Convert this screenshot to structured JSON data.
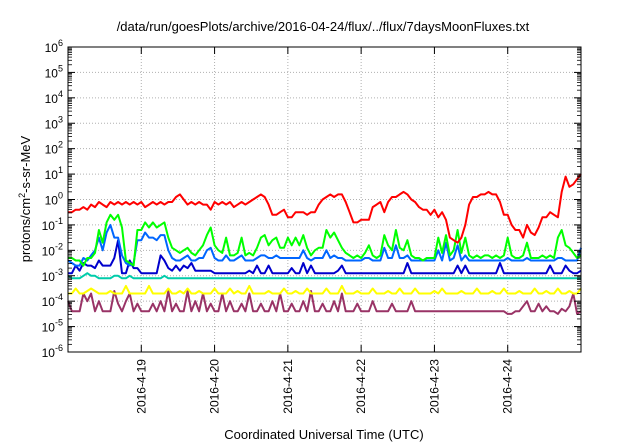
{
  "chart_data": {
    "type": "line",
    "title": "/data/run/goesPlots/archive/2016-04-24/flux/../flux/7daysMoonFluxes.txt",
    "xlabel": "Coordinated Universal Time (UTC)",
    "ylabel": {
      "pre": "protons/cm",
      "sup": "2",
      "post": "-s-sr-MeV"
    },
    "y_log_scale": true,
    "ylim_exponent": [
      -6,
      6
    ],
    "ytick_base": "10",
    "ytick_exponents": [
      "-6",
      "-5",
      "-4",
      "-3",
      "-2",
      "-1",
      "0",
      "1",
      "2",
      "3",
      "4",
      "5",
      "6"
    ],
    "xlim_days": [
      0,
      7
    ],
    "x_tick_labels": [
      "2016-4-19",
      "2016-4-20",
      "2016-4-21",
      "2016-4-22",
      "2016-4-23",
      "2016-4-24"
    ],
    "x_tick_days": [
      1,
      2,
      3,
      4,
      5,
      6
    ],
    "grid": true,
    "series": [
      {
        "color": "#ff0000",
        "key": "p1",
        "values": [
          -0.5,
          -0.5,
          -0.4,
          -0.4,
          -0.3,
          -0.4,
          -0.2,
          -0.3,
          -0.1,
          -0.2,
          -0.3,
          -0.1,
          -0.2,
          -0.1,
          -0.2,
          -0.1,
          -0.2,
          -0.1,
          -0.2,
          -0.1,
          -0.3,
          -0.2,
          -0.1,
          -0.2,
          -0.1,
          -0.2,
          -0.1,
          -0.1,
          0.1,
          0.2,
          0.0,
          -0.2,
          -0.1,
          -0.2,
          -0.1,
          -0.2,
          -0.2,
          -0.4,
          -0.1,
          -0.2,
          -0.1,
          -0.2,
          -0.1,
          -0.3,
          -0.2,
          -0.1,
          -0.2,
          -0.1,
          0.0,
          0.1,
          0.2,
          0.1,
          -0.2,
          -0.6,
          -0.6,
          -0.5,
          -0.4,
          -0.7,
          -0.7,
          -0.5,
          -0.5,
          -0.5,
          -0.6,
          -0.5,
          -0.5,
          -0.2,
          0.0,
          0.1,
          0.2,
          0.1,
          0.2,
          0.2,
          -0.1,
          -0.5,
          -0.9,
          -0.9,
          -0.8,
          -0.8,
          -0.8,
          -0.3,
          -0.2,
          -0.1,
          -0.5,
          -0.1,
          0.1,
          0.1,
          0.2,
          0.3,
          0.2,
          0.0,
          -0.1,
          -0.3,
          -0.4,
          -0.4,
          -0.6,
          -0.4,
          -0.7,
          -0.5,
          -0.8,
          -1.5,
          -1.6,
          -1.7,
          -1.5,
          -1.0,
          -0.2,
          0.1,
          0.1,
          0.2,
          0.2,
          0.3,
          0.2,
          0.2,
          -0.1,
          -0.6,
          -0.6,
          -1.0,
          -1.2,
          -1.2,
          -1.5,
          -1.0,
          -1.3,
          -1.4,
          -1.1,
          -0.7,
          -0.7,
          -0.5,
          -0.6,
          -0.7,
          0.3,
          0.9,
          0.5,
          0.6,
          0.8,
          1.0
        ]
      },
      {
        "color": "#00ff00",
        "key": "p2",
        "values": [
          -2.3,
          -2.3,
          -2.4,
          -2.4,
          -2.6,
          -2.3,
          -2.3,
          -2.1,
          -1.2,
          -1.7,
          -0.9,
          -0.6,
          -0.8,
          -0.6,
          -1.1,
          -2.4,
          -2.5,
          -2.6,
          -1.2,
          -1.2,
          -0.9,
          -1.1,
          -0.9,
          -1.1,
          -1.0,
          -0.9,
          -1.5,
          -1.9,
          -2.0,
          -2.1,
          -2.0,
          -1.9,
          -2.1,
          -2.2,
          -2.0,
          -1.8,
          -1.4,
          -1.1,
          -1.8,
          -2.0,
          -2.1,
          -1.5,
          -2.2,
          -2.2,
          -2.1,
          -1.5,
          -2.2,
          -2.1,
          -2.2,
          -1.9,
          -1.5,
          -1.4,
          -1.8,
          -1.6,
          -1.5,
          -1.9,
          -1.9,
          -1.5,
          -1.8,
          -1.5,
          -1.8,
          -1.4,
          -1.9,
          -2.2,
          -2.0,
          -1.9,
          -1.9,
          -1.2,
          -1.5,
          -1.3,
          -1.6,
          -1.9,
          -2.1,
          -2.2,
          -2.3,
          -2.2,
          -2.3,
          -2.1,
          -1.8,
          -2.2,
          -2.3,
          -2.2,
          -1.4,
          -1.8,
          -2.0,
          -1.2,
          -1.9,
          -2.0,
          -1.6,
          -2.2,
          -2.3,
          -2.3,
          -2.4,
          -2.3,
          -2.3,
          -2.3,
          -1.5,
          -2.1,
          -1.4,
          -2.2,
          -2.0,
          -1.2,
          -2.1,
          -1.5,
          -2.2,
          -2.3,
          -2.2,
          -2.3,
          -2.2,
          -2.2,
          -2.3,
          -2.2,
          -2.3,
          -2.2,
          -1.5,
          -2.2,
          -2.3,
          -2.3,
          -2.2,
          -1.7,
          -2.3,
          -2.3,
          -2.3,
          -2.2,
          -2.3,
          -2.2,
          -2.3,
          -1.5,
          -1.2,
          -1.8,
          -1.9,
          -2.1,
          -2.3,
          -2.2
        ]
      },
      {
        "color": "#0066ff",
        "key": "p3",
        "values": [
          -2.4,
          -2.5,
          -2.6,
          -2.6,
          -2.3,
          -2.4,
          -2.2,
          -2.0,
          -1.5,
          -2.0,
          -1.3,
          -1.0,
          -1.5,
          -1.5,
          -2.2,
          -2.5,
          -2.6,
          -2.5,
          -1.6,
          -1.6,
          -1.3,
          -1.5,
          -1.5,
          -1.6,
          -1.4,
          -1.4,
          -2.0,
          -2.3,
          -2.4,
          -2.4,
          -2.3,
          -2.2,
          -2.4,
          -2.4,
          -2.3,
          -2.3,
          -2.0,
          -1.9,
          -2.3,
          -2.4,
          -2.4,
          -2.2,
          -2.4,
          -2.4,
          -2.3,
          -2.2,
          -2.4,
          -2.4,
          -2.4,
          -2.3,
          -2.2,
          -2.2,
          -2.3,
          -2.3,
          -2.2,
          -2.3,
          -2.3,
          -2.3,
          -2.3,
          -2.3,
          -2.3,
          -2.0,
          -2.3,
          -2.4,
          -2.3,
          -2.3,
          -2.3,
          -2.0,
          -2.3,
          -2.2,
          -2.3,
          -2.3,
          -2.4,
          -2.4,
          -2.4,
          -2.4,
          -2.4,
          -2.3,
          -2.3,
          -2.4,
          -2.4,
          -2.4,
          -1.9,
          -2.3,
          -2.3,
          -1.8,
          -2.3,
          -2.3,
          -2.2,
          -2.4,
          -2.4,
          -2.4,
          -2.4,
          -2.4,
          -2.4,
          -2.4,
          -2.0,
          -2.4,
          -1.7,
          -2.4,
          -2.3,
          -1.8,
          -2.4,
          -2.2,
          -2.4,
          -2.4,
          -2.4,
          -2.4,
          -2.4,
          -2.4,
          -2.4,
          -2.4,
          -2.4,
          -2.4,
          -2.3,
          -2.4,
          -2.4,
          -2.4,
          -2.4,
          -2.3,
          -2.4,
          -2.4,
          -2.4,
          -2.4,
          -2.4,
          -2.4,
          -2.4,
          -2.3,
          -2.3,
          -2.4,
          -2.4,
          -2.4,
          -2.4,
          -1.9
        ]
      },
      {
        "color": "#0000cc",
        "key": "p4",
        "values": [
          -2.9,
          -2.9,
          -2.6,
          -2.8,
          -2.5,
          -2.6,
          -2.6,
          -2.7,
          -2.4,
          -2.6,
          -2.6,
          -2.6,
          -2.3,
          -1.6,
          -2.9,
          -2.9,
          -2.4,
          -2.7,
          -2.7,
          -2.9,
          -2.9,
          -2.9,
          -2.9,
          -2.9,
          -2.2,
          -2.4,
          -2.7,
          -2.8,
          -2.6,
          -2.8,
          -2.6,
          -2.7,
          -2.5,
          -2.8,
          -2.8,
          -2.8,
          -2.8,
          -2.8,
          -2.9,
          -2.9,
          -2.9,
          -2.9,
          -2.9,
          -2.9,
          -2.9,
          -2.9,
          -2.9,
          -2.8,
          -2.9,
          -2.6,
          -2.9,
          -2.9,
          -2.6,
          -2.9,
          -2.9,
          -2.9,
          -2.9,
          -2.9,
          -2.7,
          -2.9,
          -2.9,
          -2.5,
          -2.9,
          -2.6,
          -2.9,
          -2.9,
          -2.9,
          -2.9,
          -2.9,
          -2.9,
          -2.8,
          -2.6,
          -2.9,
          -2.9,
          -2.9,
          -2.9,
          -2.9,
          -2.9,
          -2.9,
          -2.9,
          -2.9,
          -2.9,
          -2.9,
          -2.9,
          -2.9,
          -2.9,
          -2.9,
          -2.9,
          -2.5,
          -2.9,
          -2.9,
          -2.9,
          -2.9,
          -2.9,
          -2.9,
          -2.9,
          -2.9,
          -2.9,
          -2.9,
          -2.9,
          -2.9,
          -2.6,
          -2.9,
          -2.6,
          -2.9,
          -2.9,
          -2.9,
          -2.9,
          -2.9,
          -2.9,
          -2.9,
          -2.9,
          -2.5,
          -2.9,
          -2.9,
          -2.9,
          -2.9,
          -2.9,
          -2.9,
          -2.9,
          -2.9,
          -2.9,
          -2.9,
          -2.9,
          -2.9,
          -2.6,
          -2.9,
          -2.9,
          -2.9,
          -2.6,
          -2.8,
          -2.9,
          -2.9,
          -2.8
        ]
      },
      {
        "color": "#00ccaa",
        "key": "p5",
        "values": [
          -3.0,
          -3.1,
          -3.1,
          -3.1,
          -3.0,
          -2.9,
          -3.0,
          -3.0,
          -3.1,
          -3.1,
          -3.1,
          -3.1,
          -3.0,
          -3.0,
          -3.1,
          -3.1,
          -3.0,
          -3.1,
          -3.1,
          -3.1,
          -3.1,
          -3.1,
          -3.1,
          -3.1,
          -3.1,
          -3.0,
          -3.1,
          -3.1,
          -3.1,
          -3.1,
          -3.1,
          -3.1,
          -3.1,
          -3.1,
          -3.1,
          -3.1,
          -3.1,
          -3.1,
          -3.1,
          -3.1,
          -3.1,
          -3.1,
          -3.1,
          -3.1,
          -3.1,
          -3.1,
          -3.1,
          -3.1,
          -3.1,
          -3.1,
          -3.1,
          -3.1,
          -3.1,
          -3.1,
          -3.1,
          -3.1,
          -3.1,
          -3.1,
          -3.1,
          -3.1,
          -3.1,
          -3.1,
          -3.1,
          -3.1,
          -3.1,
          -3.1,
          -3.1,
          -3.1,
          -3.1,
          -3.1,
          -3.1,
          -3.1,
          -3.1,
          -3.1,
          -3.1,
          -3.1,
          -3.1,
          -3.1,
          -3.1,
          -3.1,
          -3.1,
          -3.1,
          -3.1,
          -3.1,
          -3.1,
          -3.1,
          -3.1,
          -3.1,
          -3.1,
          -3.1,
          -3.1,
          -3.1,
          -3.1,
          -3.1,
          -3.1,
          -3.1,
          -3.1,
          -3.1,
          -3.1,
          -3.1,
          -3.1,
          -3.1,
          -3.1,
          -3.1,
          -3.1,
          -3.1,
          -3.1,
          -3.1,
          -3.1,
          -3.1,
          -3.1,
          -3.1,
          -3.1,
          -3.1,
          -3.1,
          -3.1,
          -3.1,
          -3.1,
          -3.1,
          -3.1,
          -3.1,
          -3.1,
          -3.1,
          -3.1,
          -3.1,
          -3.1,
          -3.1,
          -3.1,
          -3.1,
          -3.1,
          -3.1,
          -3.1,
          -3.1,
          -3.1
        ]
      },
      {
        "color": "#ffff00",
        "key": "p6",
        "values": [
          -3.7,
          -3.7,
          -3.5,
          -3.7,
          -3.7,
          -3.6,
          -3.5,
          -3.6,
          -3.7,
          -3.7,
          -3.7,
          -3.6,
          -3.7,
          -3.7,
          -3.7,
          -3.4,
          -3.7,
          -3.7,
          -3.7,
          -3.7,
          -3.7,
          -3.4,
          -3.7,
          -3.7,
          -3.7,
          -3.7,
          -3.5,
          -3.7,
          -3.7,
          -3.6,
          -3.7,
          -3.5,
          -3.7,
          -3.7,
          -3.6,
          -3.7,
          -3.7,
          -3.7,
          -3.5,
          -3.7,
          -3.7,
          -3.7,
          -3.5,
          -3.7,
          -3.6,
          -3.7,
          -3.7,
          -3.4,
          -3.7,
          -3.7,
          -3.7,
          -3.7,
          -3.6,
          -3.7,
          -3.7,
          -3.7,
          -3.5,
          -3.7,
          -3.7,
          -3.6,
          -3.7,
          -3.7,
          -3.5,
          -3.7,
          -3.7,
          -3.7,
          -3.7,
          -3.5,
          -3.7,
          -3.7,
          -3.7,
          -3.4,
          -3.7,
          -3.7,
          -3.7,
          -3.6,
          -3.7,
          -3.7,
          -3.7,
          -3.5,
          -3.7,
          -3.7,
          -3.7,
          -3.6,
          -3.7,
          -3.7,
          -3.5,
          -3.7,
          -3.7,
          -3.7,
          -3.5,
          -3.7,
          -3.7,
          -3.7,
          -3.7,
          -3.6,
          -3.7,
          -3.5,
          -3.7,
          -3.7,
          -3.7,
          -3.7,
          -3.6,
          -3.7,
          -3.7,
          -3.7,
          -3.5,
          -3.7,
          -3.7,
          -3.7,
          -3.6,
          -3.7,
          -3.7,
          -3.5,
          -3.7,
          -3.7,
          -3.7,
          -3.6,
          -3.7,
          -3.7,
          -3.7,
          -3.5,
          -3.7,
          -3.7,
          -3.6,
          -3.7,
          -3.7,
          -3.5,
          -3.7,
          -3.7,
          -3.6,
          -3.7,
          -3.7,
          -3.5
        ]
      },
      {
        "color": "#993366",
        "key": "p7",
        "values": [
          -4.0,
          -4.4,
          -4.4,
          -4.4,
          -3.7,
          -4.0,
          -3.7,
          -4.4,
          -4.0,
          -4.4,
          -4.4,
          -4.4,
          -3.6,
          -4.1,
          -4.4,
          -4.0,
          -3.7,
          -4.4,
          -4.1,
          -4.4,
          -4.4,
          -4.4,
          -4.1,
          -4.4,
          -4.0,
          -4.4,
          -3.6,
          -4.4,
          -4.1,
          -4.4,
          -4.4,
          -3.6,
          -4.4,
          -4.0,
          -4.4,
          -3.7,
          -4.4,
          -4.1,
          -4.4,
          -4.4,
          -3.7,
          -4.4,
          -4.0,
          -4.4,
          -4.4,
          -4.1,
          -4.4,
          -3.7,
          -4.4,
          -4.4,
          -4.1,
          -4.4,
          -4.4,
          -4.0,
          -4.4,
          -3.7,
          -4.4,
          -4.4,
          -4.1,
          -4.4,
          -4.4,
          -4.0,
          -4.4,
          -3.6,
          -4.4,
          -4.4,
          -4.1,
          -4.4,
          -4.4,
          -4.0,
          -4.4,
          -3.7,
          -4.4,
          -4.4,
          -4.4,
          -4.1,
          -4.4,
          -4.4,
          -4.4,
          -4.0,
          -4.4,
          -4.4,
          -4.4,
          -4.4,
          -4.1,
          -4.4,
          -4.4,
          -4.4,
          -4.4,
          -4.0,
          -4.4,
          -4.4,
          -4.4,
          -4.4,
          -4.4,
          -4.4,
          -4.4,
          -4.4,
          -4.4,
          -4.4,
          -4.4,
          -4.4,
          -4.4,
          -4.4,
          -4.4,
          -4.4,
          -4.4,
          -4.4,
          -4.4,
          -4.4,
          -4.4,
          -4.4,
          -4.4,
          -4.4,
          -4.5,
          -4.5,
          -4.4,
          -4.4,
          -4.2,
          -4.0,
          -4.4,
          -4.4,
          -4.1,
          -4.4,
          -4.2,
          -4.4,
          -4.4,
          -4.5,
          -4.3,
          -4.4,
          -4.2,
          -3.7,
          -4.5,
          -4.4
        ]
      }
    ]
  }
}
